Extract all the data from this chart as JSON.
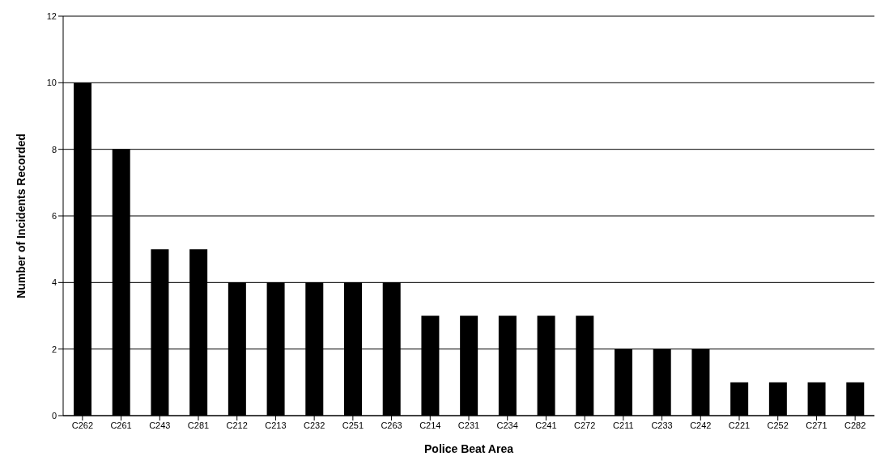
{
  "chart_data": {
    "type": "bar",
    "xlabel": "Police Beat Area",
    "ylabel": "Number of Incidents Recorded",
    "categories": [
      "C262",
      "C261",
      "C243",
      "C281",
      "C212",
      "C213",
      "C232",
      "C251",
      "C263",
      "C214",
      "C231",
      "C234",
      "C241",
      "C272",
      "C211",
      "C233",
      "C242",
      "C221",
      "C252",
      "C271",
      "C282"
    ],
    "values": [
      10,
      8,
      5,
      5,
      4,
      4,
      4,
      4,
      4,
      3,
      3,
      3,
      3,
      3,
      2,
      2,
      2,
      1,
      1,
      1,
      1
    ],
    "color": "#000000",
    "ylim": [
      0,
      12
    ],
    "yticks": [
      0,
      2,
      4,
      6,
      8,
      10,
      12
    ],
    "grid": "y"
  }
}
